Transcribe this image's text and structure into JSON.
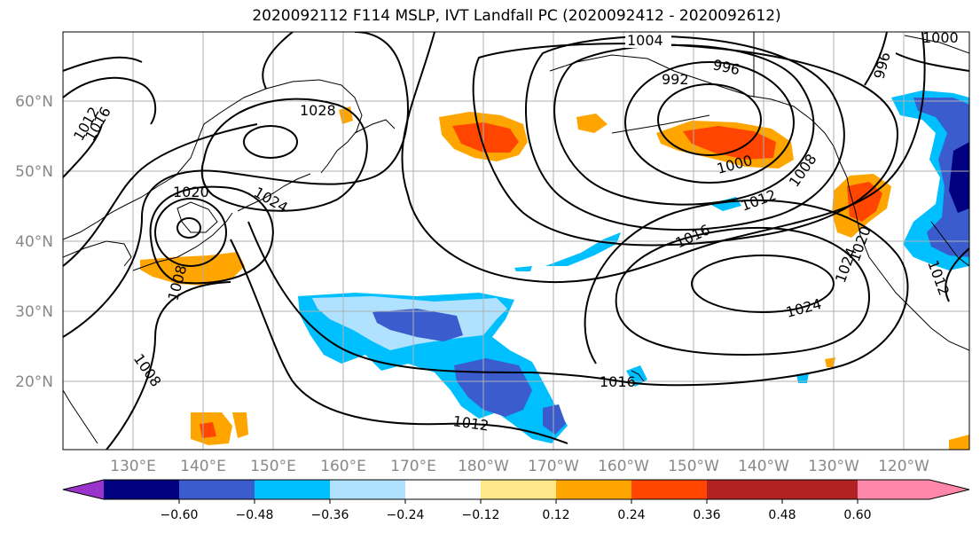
{
  "title": "2020092112 F114 MSLP, IVT Landfall PC (2020092412 - 2020092612)",
  "lat_labels": [
    "60°N",
    "50°N",
    "40°N",
    "30°N",
    "20°N"
  ],
  "lon_labels": [
    "130°E",
    "140°E",
    "150°E",
    "160°E",
    "170°E",
    "180°W",
    "170°W",
    "160°W",
    "150°W",
    "140°W",
    "130°W",
    "120°W"
  ],
  "colorbar": {
    "colors": [
      "#9933cc",
      "#000080",
      "#3a5ccc",
      "#00bfff",
      "#b0e2ff",
      "#ffffff",
      "#ffe88a",
      "#ffa500",
      "#ff4500",
      "#b22222",
      "#ff88aa"
    ],
    "tick_labels": [
      "−0.60",
      "−0.48",
      "−0.36",
      "−0.24",
      "−0.12",
      "0.12",
      "0.24",
      "0.36",
      "0.48",
      "0.60"
    ]
  },
  "contour_labels": [
    "1004",
    "996",
    "992",
    "1000",
    "1008",
    "1012",
    "1016",
    "1024",
    "1028",
    "1012",
    "1016",
    "1020",
    "1024",
    "1008",
    "1008",
    "1016",
    "1012",
    "1020",
    "1024",
    "1012",
    "996",
    "1000"
  ]
}
